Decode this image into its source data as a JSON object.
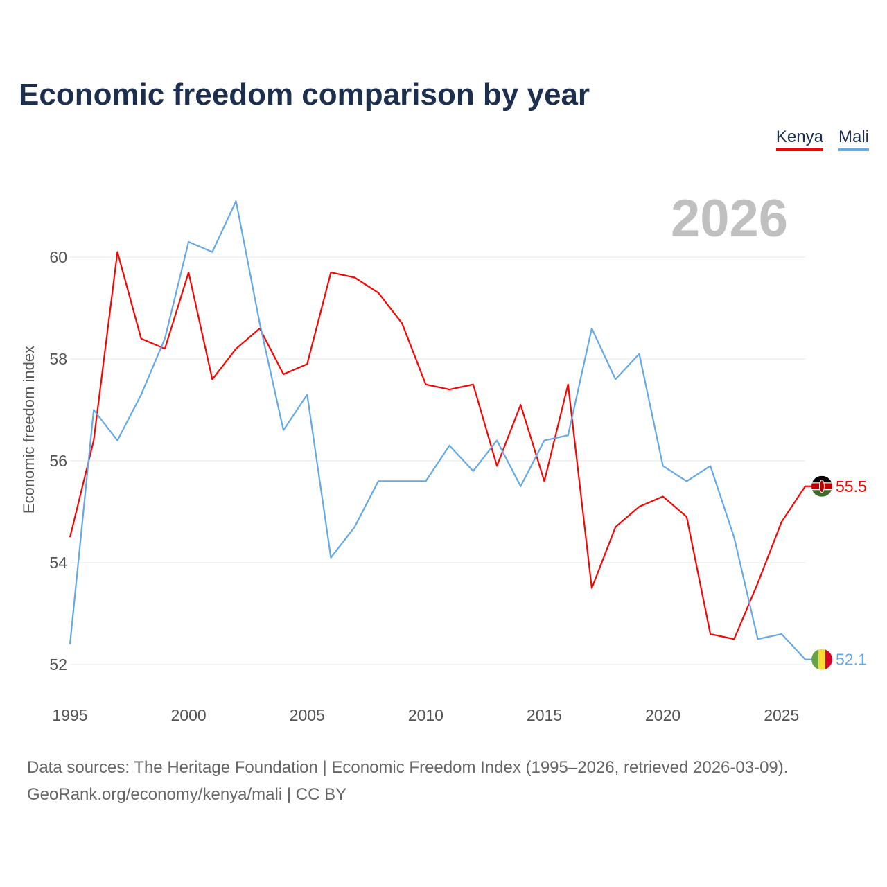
{
  "chart_data": {
    "type": "line",
    "title": "Economic freedom comparison by year",
    "xlabel": "",
    "ylabel": "Economic freedom index",
    "year_label": "2026",
    "x": [
      1995,
      1996,
      1997,
      1998,
      1999,
      2000,
      2001,
      2002,
      2003,
      2004,
      2005,
      2006,
      2007,
      2008,
      2009,
      2010,
      2011,
      2012,
      2013,
      2014,
      2015,
      2016,
      2017,
      2018,
      2019,
      2020,
      2021,
      2022,
      2023,
      2024,
      2025,
      2026
    ],
    "xticks": [
      1995,
      2000,
      2005,
      2010,
      2015,
      2020,
      2025
    ],
    "yticks": [
      52,
      54,
      56,
      58,
      60
    ],
    "xlim": [
      1995,
      2026
    ],
    "ylim": [
      51.6,
      61.6
    ],
    "grid": true,
    "legend_position": "top-right",
    "series": [
      {
        "name": "Kenya",
        "color": "#ff0000",
        "end_label": "55.5",
        "flag": "kenya-flag",
        "values": [
          54.5,
          56.4,
          60.1,
          58.4,
          58.2,
          59.7,
          57.6,
          58.2,
          58.6,
          57.7,
          57.9,
          59.7,
          59.6,
          59.3,
          58.7,
          57.5,
          57.4,
          57.5,
          55.9,
          57.1,
          55.6,
          57.5,
          53.5,
          54.7,
          55.1,
          55.3,
          54.9,
          52.6,
          52.5,
          53.6,
          54.8,
          55.5
        ]
      },
      {
        "name": "Mali",
        "color": "#64a8e8",
        "end_label": "52.1",
        "flag": "mali-flag",
        "values": [
          52.4,
          57.0,
          56.4,
          57.3,
          58.4,
          60.3,
          60.1,
          61.1,
          58.7,
          56.6,
          57.3,
          54.1,
          54.7,
          55.6,
          55.6,
          55.6,
          56.3,
          55.8,
          56.4,
          55.5,
          56.4,
          56.5,
          58.6,
          57.6,
          58.1,
          55.9,
          55.6,
          55.9,
          54.5,
          52.5,
          52.6,
          52.1
        ]
      }
    ]
  },
  "source": {
    "line1": "Data sources: The Heritage Foundation | Economic Freedom Index (1995–2026, retrieved 2026-03-09).",
    "line2": "GeoRank.org/economy/kenya/mali | CC BY"
  }
}
